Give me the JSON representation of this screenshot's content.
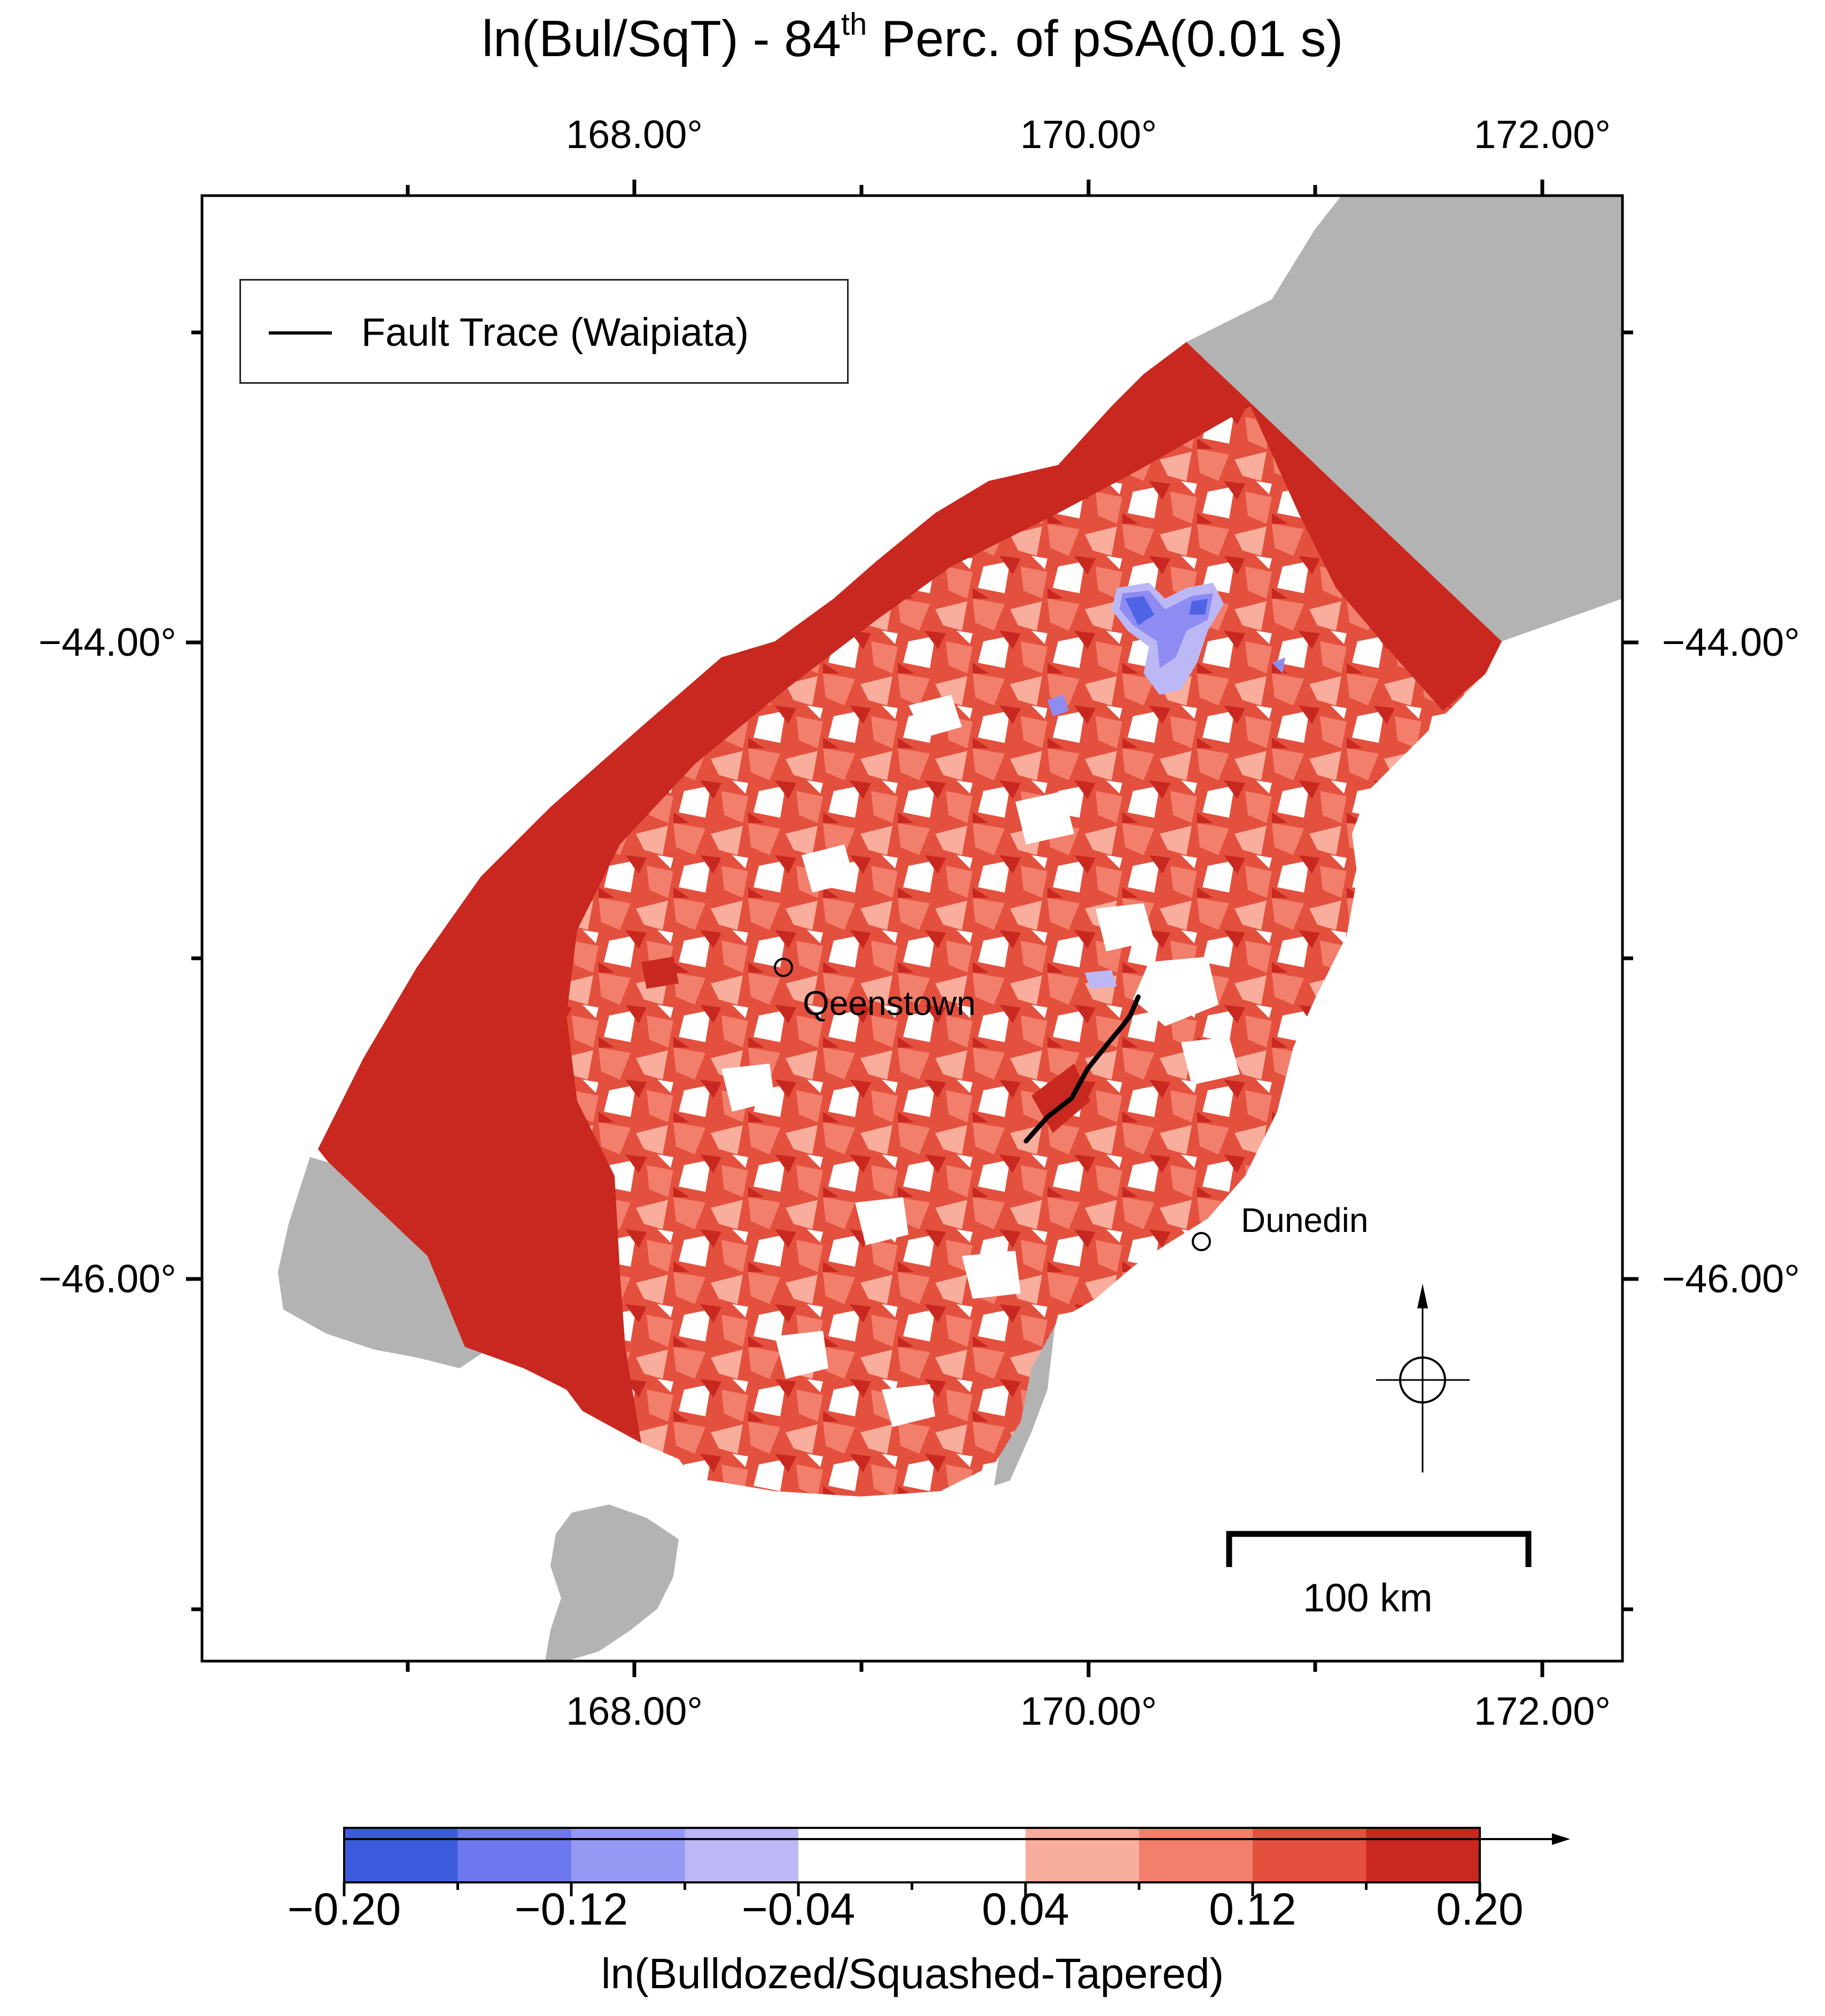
{
  "title": {
    "main": "ln(Bul/SqT)  - 84",
    "superscript": "th",
    "suffix": " Perc. of pSA(0.01 s)"
  },
  "map": {
    "longitude_ticks": [
      "168.00°",
      "170.00°",
      "172.00°"
    ],
    "latitude_ticks": [
      "−44.00°",
      "−46.00°"
    ],
    "legend": {
      "entry": "Fault Trace (Waipiata)"
    },
    "cities": [
      {
        "name": "Qeenstown"
      },
      {
        "name": "Dunedin"
      }
    ],
    "scale_bar": {
      "label": "100 km"
    },
    "north_arrow": "compass-north-arrow-icon",
    "colors": {
      "land_outside": "#b3b3b3",
      "fault": "#000000",
      "dark_red": "#c8281f",
      "red": "#e4503e",
      "medium_red": "#f27f6b",
      "light_red": "#f9ad9c",
      "white": "#ffffff",
      "light_blue": "#bcb8f5",
      "blue": "#8e8cf2"
    }
  },
  "colorbar": {
    "label": "ln(Bulldozed/Squashed-Tapered)",
    "tick_labels": [
      "−0.20",
      "−0.12",
      "−0.04",
      "0.04",
      "0.12",
      "0.20"
    ],
    "range": [
      -0.2,
      0.2
    ],
    "bins": [
      {
        "from": -0.2,
        "to": -0.16,
        "color": "#3b5ddd"
      },
      {
        "from": -0.16,
        "to": -0.12,
        "color": "#6f78ee"
      },
      {
        "from": -0.12,
        "to": -0.08,
        "color": "#9699f4"
      },
      {
        "from": -0.08,
        "to": -0.04,
        "color": "#bcb8f5"
      },
      {
        "from": -0.04,
        "to": 0.0,
        "color": "#ffffff"
      },
      {
        "from": 0.0,
        "to": 0.04,
        "color": "#ffffff"
      },
      {
        "from": 0.04,
        "to": 0.08,
        "color": "#f9ad9c"
      },
      {
        "from": 0.08,
        "to": 0.12,
        "color": "#f27f6b"
      },
      {
        "from": 0.12,
        "to": 0.16,
        "color": "#e4503e"
      },
      {
        "from": 0.16,
        "to": 0.2,
        "color": "#c8281f"
      }
    ],
    "arrow": "colorbar-extension-arrow-icon"
  }
}
